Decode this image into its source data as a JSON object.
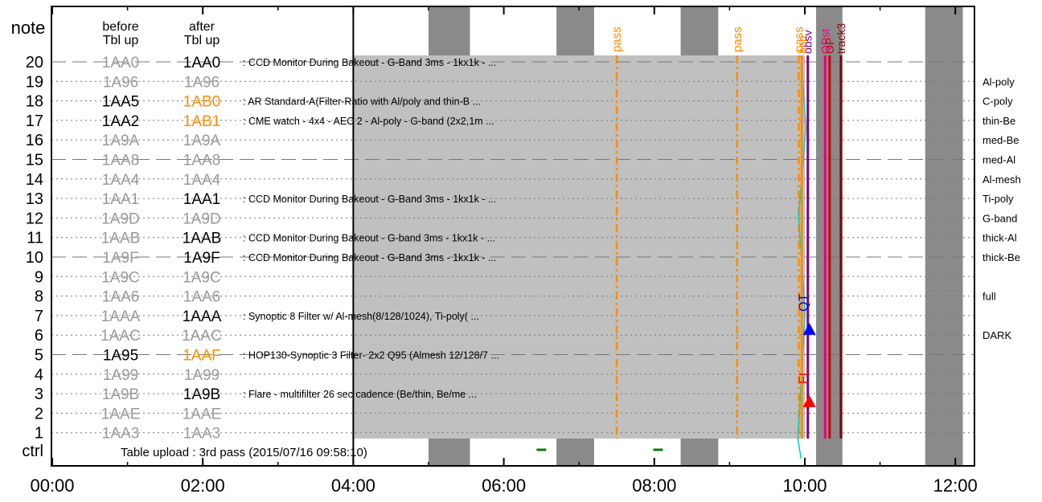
{
  "chart_data": {
    "type": "timeline",
    "title": "",
    "xlabel": "",
    "ylabel": "note",
    "x_ticks": [
      "00:00",
      "02:00",
      "04:00",
      "06:00",
      "08:00",
      "10:00",
      "12:00"
    ],
    "xlim_hours": [
      -0.25,
      12.2
    ],
    "column_headers": {
      "before_line1": "before",
      "before_line2": "Tbl up",
      "after_line1": "after",
      "after_line2": "Tbl up"
    },
    "rows": [
      {
        "n": "20",
        "before": "1AA0",
        "after": "1AA0",
        "desc": ": CCD Monitor During Bakeout - G-Band 3ms - 1kx1k -  ...",
        "filter": "",
        "before_active": false,
        "after_active": true,
        "after_changed": false,
        "dashed": true
      },
      {
        "n": "19",
        "before": "1A96",
        "after": "1A96",
        "desc": "",
        "filter": "Al-poly",
        "before_active": false,
        "after_active": false,
        "after_changed": false,
        "dashed": false
      },
      {
        "n": "18",
        "before": "1AA5",
        "after": "1AB0",
        "desc": ": AR Standard-A(Filter-Ratio with Al/poly and thin-B ...",
        "filter": "C-poly",
        "before_active": true,
        "after_active": true,
        "after_changed": true,
        "dashed": false
      },
      {
        "n": "17",
        "before": "1AA2",
        "after": "1AB1",
        "desc": ": CME watch - 4x4 - AEC 2 - Al-poly - G-band (2x2,1m ...",
        "filter": "thin-Be",
        "before_active": true,
        "after_active": true,
        "after_changed": true,
        "dashed": false
      },
      {
        "n": "16",
        "before": "1A9A",
        "after": "1A9A",
        "desc": "",
        "filter": "med-Be",
        "before_active": false,
        "after_active": false,
        "after_changed": false,
        "dashed": false
      },
      {
        "n": "15",
        "before": "1AA8",
        "after": "1AA8",
        "desc": "",
        "filter": "med-Al",
        "before_active": false,
        "after_active": false,
        "after_changed": false,
        "dashed": true
      },
      {
        "n": "14",
        "before": "1AA4",
        "after": "1AA4",
        "desc": "",
        "filter": "Al-mesh",
        "before_active": false,
        "after_active": false,
        "after_changed": false,
        "dashed": false
      },
      {
        "n": "13",
        "before": "1AA1",
        "after": "1AA1",
        "desc": ": CCD Monitor During Bakeout - G-Band 3ms - 1kx1k -  ...",
        "filter": "Ti-poly",
        "before_active": false,
        "after_active": true,
        "after_changed": false,
        "dashed": false
      },
      {
        "n": "12",
        "before": "1A9D",
        "after": "1A9D",
        "desc": "",
        "filter": "G-band",
        "before_active": false,
        "after_active": false,
        "after_changed": false,
        "dashed": false
      },
      {
        "n": "11",
        "before": "1AAB",
        "after": "1AAB",
        "desc": ": CCD Monitor During Bakeout - G-band 3ms - 1kx1k -  ...",
        "filter": "thick-Al",
        "before_active": false,
        "after_active": true,
        "after_changed": false,
        "dashed": false
      },
      {
        "n": "10",
        "before": "1A9F",
        "after": "1A9F",
        "desc": ": CCD Monitor During Bakeout - G-Band 3ms - 1kx1k -  ...",
        "filter": "thick-Be",
        "before_active": false,
        "after_active": true,
        "after_changed": false,
        "dashed": true
      },
      {
        "n": "9",
        "before": "1A9C",
        "after": "1A9C",
        "desc": "",
        "filter": "",
        "before_active": false,
        "after_active": false,
        "after_changed": false,
        "dashed": false
      },
      {
        "n": "8",
        "before": "1AA6",
        "after": "1AA6",
        "desc": "",
        "filter": "full",
        "before_active": false,
        "after_active": false,
        "after_changed": false,
        "dashed": false
      },
      {
        "n": "7",
        "before": "1AAA",
        "after": "1AAA",
        "desc": ": Synoptic 8 Filter w/ Al-mesh(8/128/1024), Ti-poly( ...",
        "filter": "",
        "before_active": false,
        "after_active": true,
        "after_changed": false,
        "dashed": false
      },
      {
        "n": "6",
        "before": "1AAC",
        "after": "1AAC",
        "desc": "",
        "filter": "DARK",
        "before_active": false,
        "after_active": false,
        "after_changed": false,
        "dashed": false
      },
      {
        "n": "5",
        "before": "1A95",
        "after": "1AAF",
        "desc": ": HOP130-Synoptic 3 Filter- 2x2 Q95 (Almesh 12/128/7 ...",
        "filter": "",
        "before_active": true,
        "after_active": true,
        "after_changed": true,
        "dashed": true
      },
      {
        "n": "4",
        "before": "1A99",
        "after": "1A99",
        "desc": "",
        "filter": "",
        "before_active": false,
        "after_active": false,
        "after_changed": false,
        "dashed": false
      },
      {
        "n": "3",
        "before": "1A9B",
        "after": "1A9B",
        "desc": ": Flare - multifilter 26 sec cadence (Be/thin, Be/me ...",
        "filter": "",
        "before_active": false,
        "after_active": true,
        "after_changed": false,
        "dashed": false
      },
      {
        "n": "2",
        "before": "1AAE",
        "after": "1AAE",
        "desc": "",
        "filter": "",
        "before_active": false,
        "after_active": false,
        "after_changed": false,
        "dashed": false
      },
      {
        "n": "1",
        "before": "1AA3",
        "after": "1AA3",
        "desc": "",
        "filter": "",
        "before_active": false,
        "after_active": false,
        "after_changed": false,
        "dashed": false
      }
    ],
    "ctrl_label": "ctrl",
    "ctrl_text": "Table upload : 3rd pass (2015/07/16 09:58:10)",
    "gray_block_hours": [
      4.0,
      10.0
    ],
    "dark_bands_hours": [
      [
        5.0,
        5.55
      ],
      [
        6.7,
        7.2
      ],
      [
        8.35,
        8.85
      ],
      [
        10.15,
        10.5
      ],
      [
        11.6,
        12.1
      ]
    ],
    "pass_lines": [
      {
        "hour": 7.5,
        "label": "pass"
      },
      {
        "hour": 9.1,
        "label": "pass"
      },
      {
        "hour": 9.92,
        "label": "pass"
      }
    ],
    "event_lines": [
      {
        "hour": 9.96,
        "label": "hsp",
        "color": "#ff8c00"
      },
      {
        "hour": 10.04,
        "label": "obsv",
        "color": "#800080"
      },
      {
        "hour": 10.27,
        "label": "QPst",
        "color": "#e8007a"
      },
      {
        "hour": 10.33,
        "label": "OP",
        "color": "#cc0000"
      },
      {
        "hour": 10.48,
        "label": "track3",
        "color": "#8b0000"
      }
    ],
    "markers": [
      {
        "hour": 10.06,
        "row": 6.3,
        "label": "QT",
        "color": "#0000ff"
      },
      {
        "hour": 10.06,
        "row": 2.6,
        "label": "FL",
        "color": "#ff0000"
      }
    ],
    "ctrl_ticks_hours": [
      6.5,
      8.05
    ],
    "colors": {
      "active": "#000000",
      "inactive": "#999999",
      "changed": "#ff8c00",
      "gray_block": "#c0c0c0",
      "dark_band": "#8a8a8a",
      "pass": "#ff8c00",
      "cyan": "#00cccc",
      "ctrl_tick": "#008000"
    }
  }
}
